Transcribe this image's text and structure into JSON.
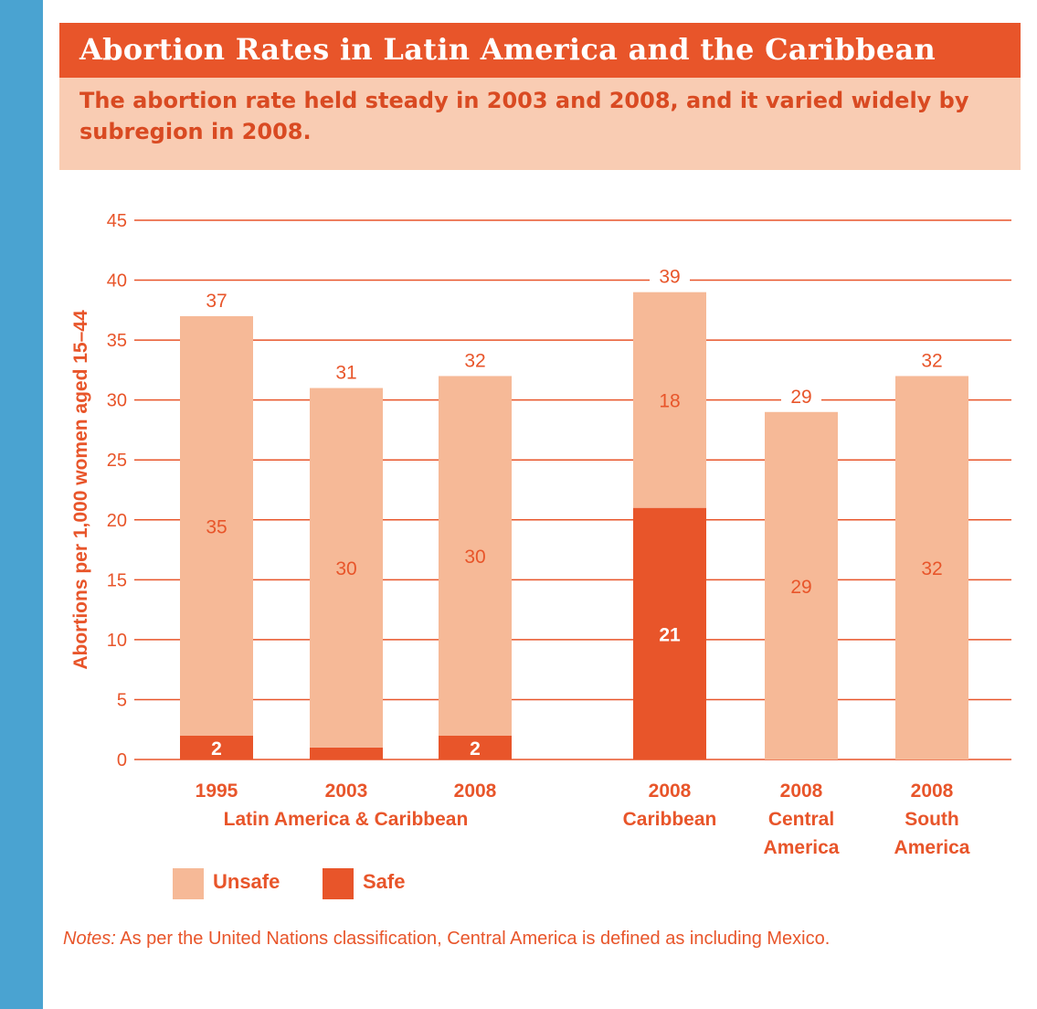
{
  "title": "Abortion Rates in Latin America and the Caribbean",
  "subtitle": "The abortion rate held steady in 2003 and 2008, and it varied widely by subregion in 2008.",
  "colors": {
    "unsafe": "#f6b997",
    "safe": "#e8552a",
    "accent": "#e8552a",
    "axis_text": "#e8552a",
    "background_frame": "#4aa3d1"
  },
  "legend": {
    "unsafe": "Unsafe",
    "safe": "Safe"
  },
  "notes": {
    "prefix": "Notes:",
    "text": " As per the United Nations classification, Central America is defined as including Mexico."
  },
  "chart_data": {
    "type": "bar",
    "stacked": true,
    "ylabel": "Abortions per 1,000 women aged 15–44",
    "ylim": [
      0,
      45
    ],
    "yticks": [
      0,
      5,
      10,
      15,
      20,
      25,
      30,
      35,
      40,
      45
    ],
    "grid": true,
    "categories": [
      "1995",
      "2003",
      "2008",
      "2008",
      "2008",
      "2008"
    ],
    "category_sublabels": [
      [
        "1995"
      ],
      [
        "2003"
      ],
      [
        "2008"
      ],
      [
        "2008",
        "Caribbean"
      ],
      [
        "2008",
        "Central",
        "America"
      ],
      [
        "2008",
        "South",
        "America"
      ]
    ],
    "group_labels": [
      {
        "label": "Latin America & Caribbean",
        "categories": [
          0,
          1,
          2
        ]
      }
    ],
    "series": [
      {
        "name": "Safe",
        "values": [
          2,
          1,
          2,
          21,
          0,
          0
        ],
        "labels": [
          "2",
          "",
          "2",
          "21",
          "",
          ""
        ]
      },
      {
        "name": "Unsafe",
        "values": [
          35,
          30,
          30,
          18,
          29,
          32
        ],
        "labels": [
          "35",
          "30",
          "30",
          "18",
          "29",
          "32"
        ]
      }
    ],
    "totals": [
      "37",
      "31",
      "32",
      "39",
      "29",
      "32"
    ],
    "legend_position": "bottom-left"
  }
}
